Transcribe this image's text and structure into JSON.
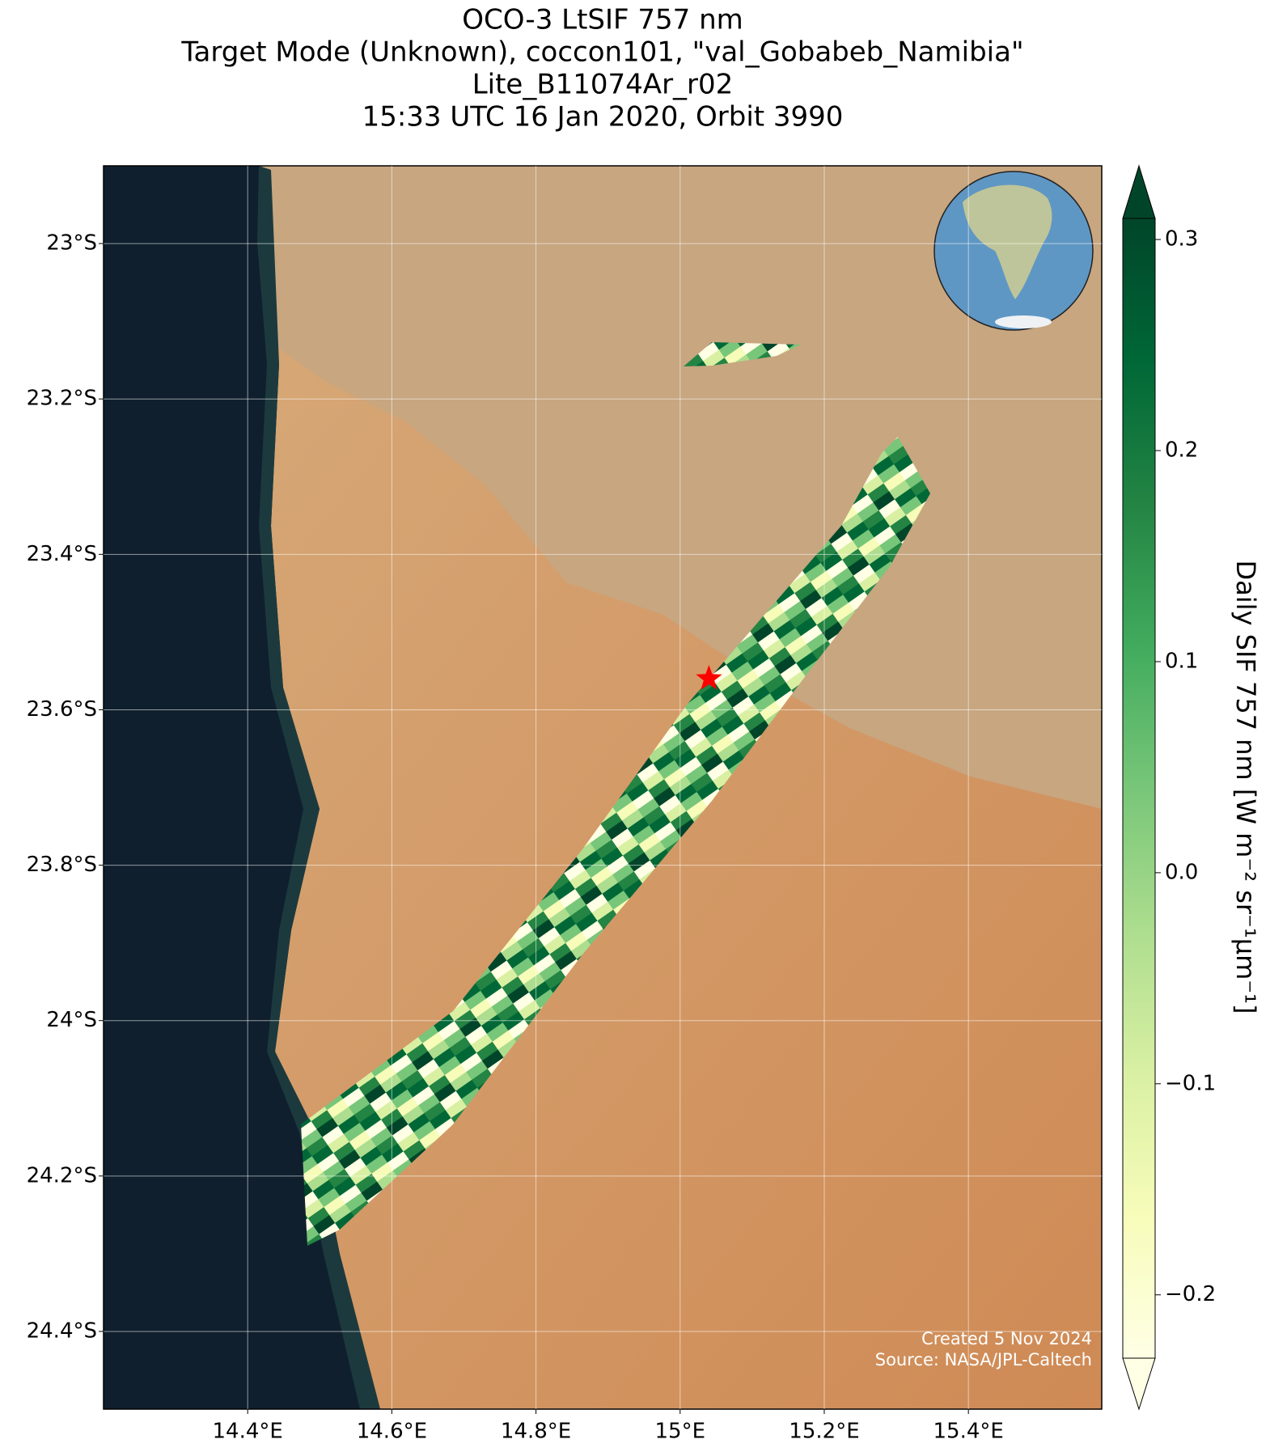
{
  "title_lines": [
    "OCO-3 LtSIF 757 nm",
    "Target Mode (Unknown), coccon101, \"val_Gobabeb_Namibia\"",
    "Lite_B11074Ar_r02",
    "15:33 UTC 16 Jan 2020, Orbit 3990"
  ],
  "map": {
    "xlim": [
      14.2,
      15.585
    ],
    "ylim": [
      -24.5,
      -22.9
    ],
    "xticks": [
      {
        "value": 14.4,
        "label": "14.4°E"
      },
      {
        "value": 14.6,
        "label": "14.6°E"
      },
      {
        "value": 14.8,
        "label": "14.8°E"
      },
      {
        "value": 15.0,
        "label": "15°E"
      },
      {
        "value": 15.2,
        "label": "15.2°E"
      },
      {
        "value": 15.4,
        "label": "15.4°E"
      }
    ],
    "yticks": [
      {
        "value": -23.0,
        "label": "23°S"
      },
      {
        "value": -23.2,
        "label": "23.2°S"
      },
      {
        "value": -23.4,
        "label": "23.4°S"
      },
      {
        "value": -23.6,
        "label": "23.6°S"
      },
      {
        "value": -23.8,
        "label": "23.8°S"
      },
      {
        "value": -24.0,
        "label": "24°S"
      },
      {
        "value": -24.2,
        "label": "24.2°S"
      },
      {
        "value": -24.4,
        "label": "24.4°S"
      }
    ],
    "grid": true,
    "site": {
      "lon": 15.04,
      "lat": -23.56,
      "color": "#ff0000"
    }
  },
  "colorbar": {
    "label": "Daily SIF 757 nm [W m⁻² sr⁻¹μm⁻¹]",
    "lim": [
      -0.23,
      0.31
    ],
    "ticks": [
      0.3,
      0.2,
      0.1,
      {
        "value": 0,
        "label": "0.0"
      },
      {
        "value": -0.1,
        "label": "−0.1"
      },
      {
        "value": -0.2,
        "label": "−0.2"
      }
    ],
    "colors": [
      "#ffffe5",
      "#f7fcb9",
      "#d9f0a3",
      "#addd8e",
      "#78c679",
      "#41ab5d",
      "#238443",
      "#006837",
      "#004529"
    ]
  },
  "credits": [
    "Created 5 Nov 2024",
    "Source: NASA/JPL-Caltech"
  ]
}
